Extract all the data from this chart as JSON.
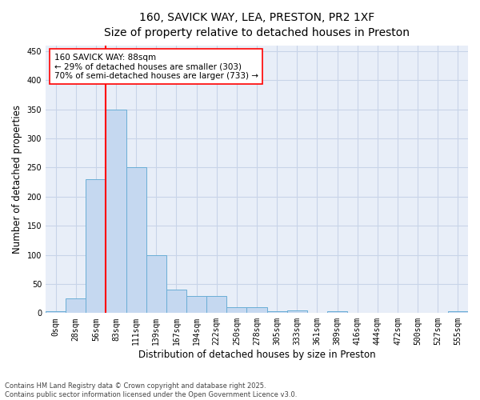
{
  "title_line1": "160, SAVICK WAY, LEA, PRESTON, PR2 1XF",
  "title_line2": "Size of property relative to detached houses in Preston",
  "xlabel": "Distribution of detached houses by size in Preston",
  "ylabel": "Number of detached properties",
  "bar_labels": [
    "0sqm",
    "28sqm",
    "56sqm",
    "83sqm",
    "111sqm",
    "139sqm",
    "167sqm",
    "194sqm",
    "222sqm",
    "250sqm",
    "278sqm",
    "305sqm",
    "333sqm",
    "361sqm",
    "389sqm",
    "416sqm",
    "444sqm",
    "472sqm",
    "500sqm",
    "527sqm",
    "555sqm"
  ],
  "bar_values": [
    3,
    25,
    230,
    350,
    250,
    100,
    40,
    30,
    30,
    10,
    10,
    3,
    5,
    0,
    3,
    0,
    0,
    0,
    0,
    0,
    3
  ],
  "bar_color": "#c5d8f0",
  "bar_edge_color": "#6aaed6",
  "vline_x_index": 2.5,
  "vline_color": "red",
  "annotation_text": "160 SAVICK WAY: 88sqm\n← 29% of detached houses are smaller (303)\n70% of semi-detached houses are larger (733) →",
  "annotation_box_color": "white",
  "annotation_box_edgecolor": "red",
  "ylim": [
    0,
    460
  ],
  "yticks": [
    0,
    50,
    100,
    150,
    200,
    250,
    300,
    350,
    400,
    450
  ],
  "grid_color": "#c8d4e8",
  "background_color": "#e8eef8",
  "footnote": "Contains HM Land Registry data © Crown copyright and database right 2025.\nContains public sector information licensed under the Open Government Licence v3.0.",
  "title_fontsize": 10,
  "axis_label_fontsize": 8.5,
  "tick_fontsize": 7,
  "annotation_fontsize": 7.5,
  "footnote_fontsize": 6
}
